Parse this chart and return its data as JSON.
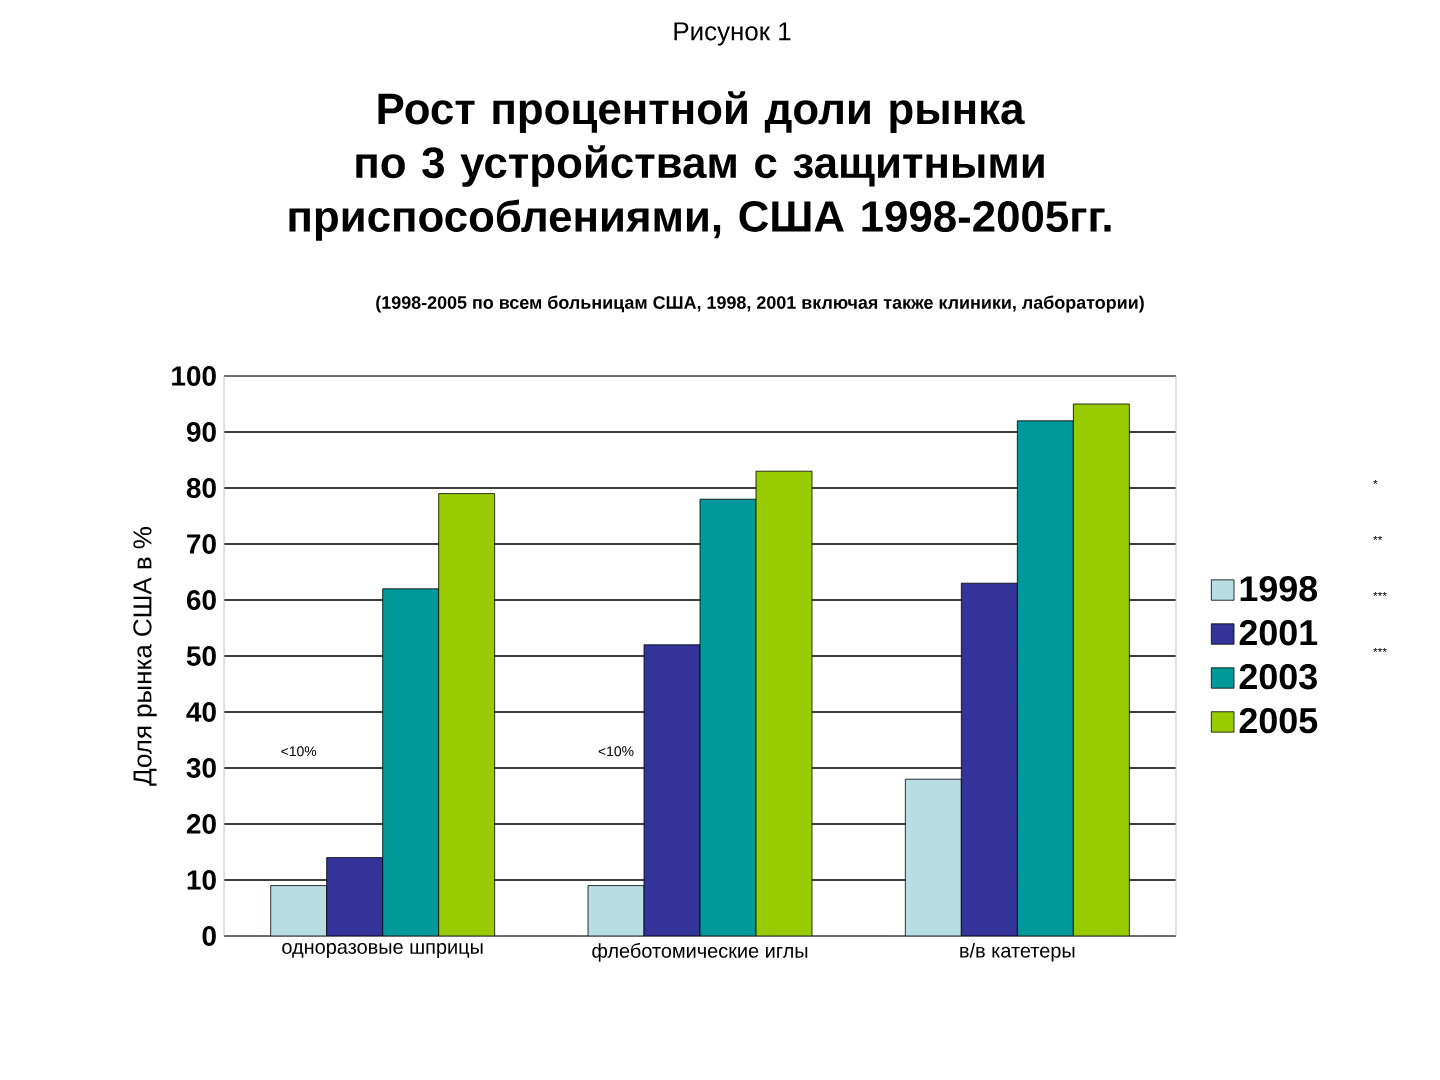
{
  "chart_data": {
    "type": "bar",
    "title": "Рост процентной доли рынка по 3 устройствам с защитными приспособлениями, США 1998-2005гг.",
    "subtitle": "(1998-2005 по всем больницам США, 1998, 2001 включая также клиники, лаборатории)",
    "ylabel": "Доля рынка США в %",
    "categories": [
      "одноразовые шприцы",
      "флеботомические иглы",
      "в/в катетеры"
    ],
    "series": [
      {
        "name": "1998",
        "color": "#b8dde3",
        "values": [
          9,
          9,
          28
        ]
      },
      {
        "name": "2001",
        "color": "#333399",
        "values": [
          14,
          52,
          63
        ]
      },
      {
        "name": "2003",
        "color": "#009999",
        "values": [
          62,
          78,
          92
        ]
      },
      {
        "name": "2005",
        "color": "#99cc00",
        "values": [
          79,
          83,
          95
        ]
      }
    ],
    "ylim": [
      0,
      100
    ],
    "yticks": [
      0,
      10,
      20,
      30,
      40,
      50,
      60,
      70,
      80,
      90,
      100
    ],
    "grid": "y",
    "legend": "right",
    "annotations": [
      "Рисунок 1",
      "<10%",
      "<10%",
      "*",
      "**",
      "***",
      "***"
    ]
  }
}
